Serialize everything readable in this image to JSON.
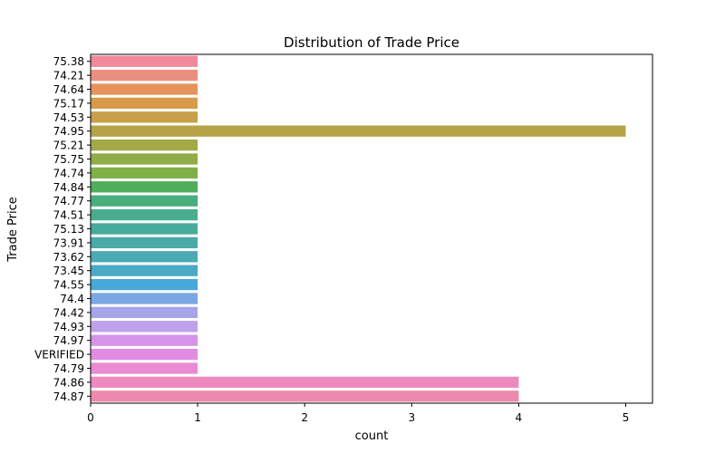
{
  "chart_data": {
    "type": "bar",
    "orientation": "horizontal",
    "title": "Distribution of Trade Price",
    "xlabel": "count",
    "ylabel": "Trade Price",
    "xlim": [
      0,
      5.25
    ],
    "xticks": [
      "0",
      "1",
      "2",
      "3",
      "4",
      "5"
    ],
    "grid": false,
    "categories": [
      "75.38",
      "74.21",
      "74.64",
      "75.17",
      "74.53",
      "74.95",
      "75.21",
      "75.75",
      "74.74",
      "74.84",
      "74.77",
      "74.51",
      "75.13",
      "73.91",
      "73.62",
      "73.45",
      "74.55",
      "74.4",
      "74.42",
      "74.93",
      "74.97",
      "VERIFIED",
      "74.79",
      "74.86",
      "74.87"
    ],
    "values": [
      1,
      1,
      1,
      1,
      1,
      5,
      1,
      1,
      1,
      1,
      1,
      1,
      1,
      1,
      1,
      1,
      1,
      1,
      1,
      1,
      1,
      1,
      1,
      4,
      4
    ],
    "colors": [
      "#f0899a",
      "#ea8f80",
      "#e5935b",
      "#d89a48",
      "#c8a04a",
      "#b5a447",
      "#a3a945",
      "#91ad47",
      "#7db146",
      "#4eae59",
      "#4aad7d",
      "#49ac8f",
      "#48ab9c",
      "#49aaa8",
      "#4aaab5",
      "#4aaac5",
      "#48a9d9",
      "#7aa8e3",
      "#a5a5e8",
      "#bfa1ea",
      "#d694e8",
      "#e08ce3",
      "#ea8ad3",
      "#ec8abf",
      "#ee89ae"
    ]
  }
}
